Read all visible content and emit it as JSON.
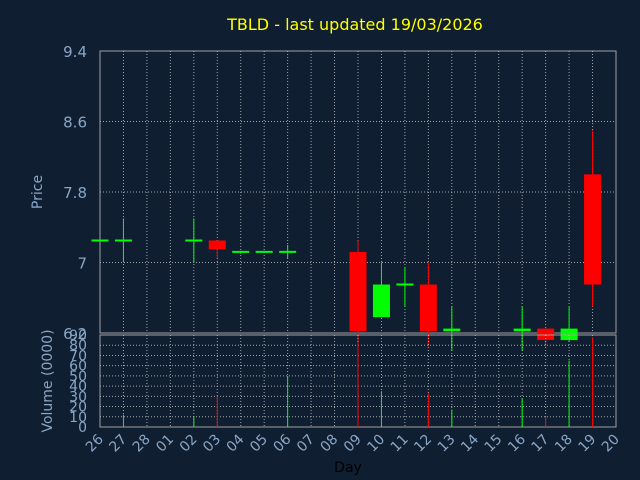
{
  "chart_data": [
    {
      "type": "candlestick",
      "title": "TBLD - last updated 19/03/2026",
      "ylabel": "Price",
      "ylim": [
        6.2,
        9.4
      ],
      "yticks": [
        "9.4",
        "8.6",
        "7.8",
        "7",
        "6.2"
      ],
      "x": [
        "26",
        "27",
        "28",
        "01",
        "02",
        "03",
        "04",
        "05",
        "06",
        "07",
        "08",
        "09",
        "10",
        "11",
        "12",
        "13",
        "14",
        "15",
        "16",
        "17",
        "18",
        "19",
        "20"
      ],
      "ohlc": [
        {
          "x": "26",
          "open": 7.25,
          "high": 7.25,
          "low": 7.25,
          "close": 7.25
        },
        {
          "x": "27",
          "open": 7.25,
          "high": 7.5,
          "low": 7.0,
          "close": 7.25
        },
        {
          "x": "02",
          "open": 7.25,
          "high": 7.5,
          "low": 7.0,
          "close": 7.25
        },
        {
          "x": "03",
          "open": 7.25,
          "high": 7.25,
          "low": 7.05,
          "close": 7.15
        },
        {
          "x": "04",
          "open": 7.12,
          "high": 7.12,
          "low": 7.1,
          "close": 7.12
        },
        {
          "x": "05",
          "open": 7.12,
          "high": 7.12,
          "low": 7.12,
          "close": 7.12
        },
        {
          "x": "06",
          "open": 7.1,
          "high": 7.2,
          "low": 7.05,
          "close": 7.12
        },
        {
          "x": "09",
          "open": 7.12,
          "high": 7.25,
          "low": 6.0,
          "close": 6.22
        },
        {
          "x": "10",
          "open": 6.38,
          "high": 7.0,
          "low": 6.38,
          "close": 6.75
        },
        {
          "x": "11",
          "open": 6.75,
          "high": 6.95,
          "low": 6.5,
          "close": 6.75
        },
        {
          "x": "12",
          "open": 6.75,
          "high": 7.0,
          "low": 6.05,
          "close": 6.22
        },
        {
          "x": "13",
          "open": 6.22,
          "high": 6.5,
          "low": 6.0,
          "close": 6.25
        },
        {
          "x": "16",
          "open": 6.22,
          "high": 6.5,
          "low": 6.0,
          "close": 6.25
        },
        {
          "x": "17",
          "open": 6.25,
          "high": 6.25,
          "low": 6.05,
          "close": 6.12
        },
        {
          "x": "18",
          "open": 6.12,
          "high": 6.5,
          "low": 6.1,
          "close": 6.25
        },
        {
          "x": "19",
          "open": 8.0,
          "high": 8.5,
          "low": 6.5,
          "close": 6.75
        }
      ],
      "colors": {
        "up": "#00ff00",
        "down": "#ff0000"
      },
      "grid": true
    },
    {
      "type": "bar",
      "ylabel": "Volume (0000)",
      "xlabel": "Day",
      "ylim": [
        0,
        90
      ],
      "yticks": [
        "90",
        "80",
        "70",
        "60",
        "50",
        "40",
        "30",
        "20",
        "10",
        "0"
      ],
      "x": [
        "26",
        "27",
        "28",
        "01",
        "02",
        "03",
        "04",
        "05",
        "06",
        "07",
        "08",
        "09",
        "10",
        "11",
        "12",
        "13",
        "14",
        "15",
        "16",
        "17",
        "18",
        "19",
        "20"
      ],
      "values": [
        {
          "x": "27",
          "volume": 12,
          "color": "#00ff00"
        },
        {
          "x": "02",
          "volume": 10,
          "color": "#00ff00"
        },
        {
          "x": "03",
          "volume": 30,
          "color": "#ff0000"
        },
        {
          "x": "06",
          "volume": 50,
          "color": "#00ff00"
        },
        {
          "x": "09",
          "volume": 82,
          "color": "#ff0000"
        },
        {
          "x": "10",
          "volume": 35,
          "color": "#00ff00"
        },
        {
          "x": "12",
          "volume": 33,
          "color": "#ff0000"
        },
        {
          "x": "13",
          "volume": 17,
          "color": "#00ff00"
        },
        {
          "x": "16",
          "volume": 28,
          "color": "#00ff00"
        },
        {
          "x": "17",
          "volume": 10,
          "color": "#ff0000"
        },
        {
          "x": "18",
          "volume": 65,
          "color": "#00ff00"
        },
        {
          "x": "19",
          "volume": 88,
          "color": "#ff0000"
        }
      ],
      "grid": true
    }
  ]
}
